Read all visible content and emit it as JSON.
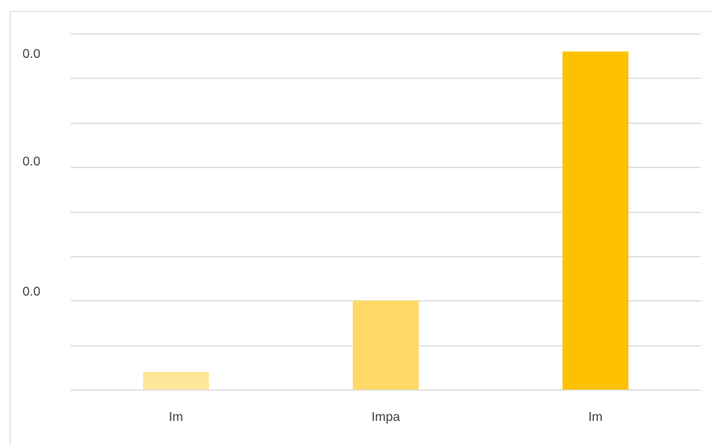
{
  "chart_data": {
    "type": "bar",
    "title": "",
    "xlabel": "",
    "ylabel": "",
    "categories": [
      "Im",
      "Impa",
      "Im"
    ],
    "values": [
      0.002,
      0.01,
      0.038
    ],
    "ylim": [
      0,
      0.04
    ],
    "y_tick_labels": [
      "0.0",
      "0.0",
      "0.0"
    ],
    "bar_colors": [
      "#FFE699",
      "#FFD966",
      "#FFC000"
    ],
    "grid": true,
    "grid_color": "#d9d9d9",
    "legend": "none"
  }
}
